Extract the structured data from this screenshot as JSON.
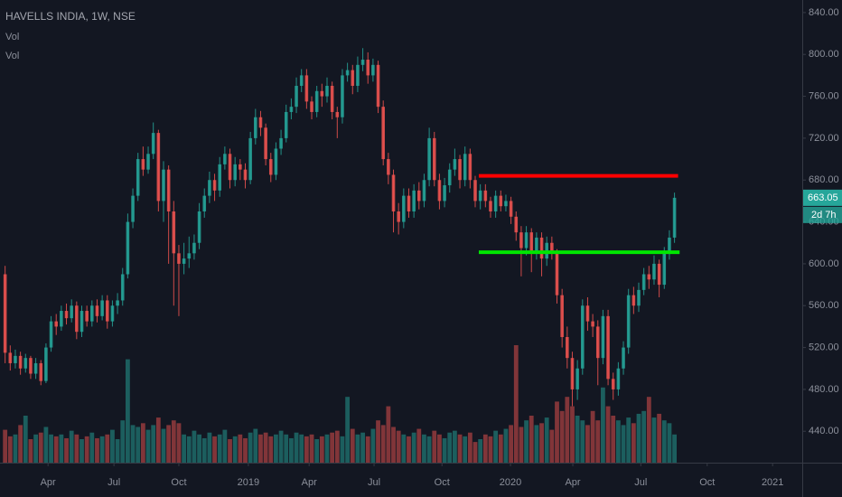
{
  "chart_data": {
    "type": "candlestick",
    "title": "HAVELLS INDIA, 1W, NSE",
    "indicators": [
      "Vol",
      "Vol"
    ],
    "up_color": "#26a69a",
    "down_color": "#ef5350",
    "ohlc": [
      [
        590,
        598,
        505,
        515
      ],
      [
        515,
        522,
        498,
        505
      ],
      [
        505,
        518,
        500,
        512
      ],
      [
        512,
        516,
        494,
        500
      ],
      [
        500,
        514,
        496,
        510
      ],
      [
        510,
        512,
        490,
        495
      ],
      [
        495,
        510,
        490,
        505
      ],
      [
        505,
        508,
        484,
        488
      ],
      [
        488,
        524,
        486,
        520
      ],
      [
        520,
        550,
        516,
        545
      ],
      [
        545,
        552,
        532,
        540
      ],
      [
        540,
        560,
        536,
        555
      ],
      [
        555,
        562,
        542,
        548
      ],
      [
        548,
        566,
        544,
        560
      ],
      [
        560,
        564,
        528,
        535
      ],
      [
        535,
        560,
        530,
        555
      ],
      [
        555,
        560,
        540,
        545
      ],
      [
        545,
        565,
        540,
        560
      ],
      [
        560,
        566,
        544,
        550
      ],
      [
        550,
        570,
        546,
        565
      ],
      [
        565,
        570,
        538,
        545
      ],
      [
        545,
        565,
        540,
        560
      ],
      [
        560,
        572,
        552,
        565
      ],
      [
        565,
        596,
        560,
        590
      ],
      [
        590,
        648,
        586,
        640
      ],
      [
        640,
        672,
        634,
        665
      ],
      [
        665,
        706,
        660,
        700
      ],
      [
        700,
        712,
        684,
        690
      ],
      [
        690,
        712,
        686,
        705
      ],
      [
        705,
        735,
        700,
        725
      ],
      [
        725,
        728,
        650,
        660
      ],
      [
        660,
        698,
        640,
        690
      ],
      [
        690,
        694,
        600,
        650
      ],
      [
        650,
        660,
        560,
        610
      ],
      [
        610,
        618,
        550,
        600
      ],
      [
        600,
        620,
        590,
        605
      ],
      [
        605,
        626,
        596,
        610
      ],
      [
        610,
        628,
        604,
        620
      ],
      [
        620,
        658,
        614,
        650
      ],
      [
        650,
        672,
        644,
        665
      ],
      [
        665,
        688,
        658,
        680
      ],
      [
        680,
        686,
        660,
        670
      ],
      [
        670,
        702,
        664,
        695
      ],
      [
        695,
        712,
        690,
        705
      ],
      [
        705,
        710,
        672,
        680
      ],
      [
        680,
        702,
        674,
        695
      ],
      [
        695,
        700,
        680,
        690
      ],
      [
        690,
        696,
        672,
        680
      ],
      [
        680,
        726,
        676,
        720
      ],
      [
        720,
        748,
        714,
        740
      ],
      [
        740,
        746,
        722,
        730
      ],
      [
        730,
        734,
        694,
        700
      ],
      [
        700,
        706,
        678,
        685
      ],
      [
        685,
        716,
        680,
        710
      ],
      [
        710,
        728,
        704,
        720
      ],
      [
        720,
        752,
        716,
        745
      ],
      [
        745,
        758,
        738,
        750
      ],
      [
        750,
        778,
        744,
        770
      ],
      [
        770,
        786,
        764,
        780
      ],
      [
        780,
        786,
        748,
        755
      ],
      [
        755,
        760,
        738,
        745
      ],
      [
        745,
        770,
        740,
        765
      ],
      [
        765,
        772,
        750,
        760
      ],
      [
        760,
        778,
        754,
        770
      ],
      [
        770,
        774,
        738,
        745
      ],
      [
        745,
        750,
        720,
        740
      ],
      [
        740,
        786,
        734,
        780
      ],
      [
        780,
        792,
        774,
        785
      ],
      [
        785,
        790,
        762,
        770
      ],
      [
        770,
        798,
        764,
        790
      ],
      [
        790,
        806,
        784,
        795
      ],
      [
        795,
        802,
        772,
        780
      ],
      [
        780,
        796,
        774,
        790
      ],
      [
        790,
        794,
        744,
        750
      ],
      [
        750,
        756,
        694,
        700
      ],
      [
        700,
        706,
        676,
        685
      ],
      [
        685,
        690,
        630,
        650
      ],
      [
        650,
        658,
        628,
        640
      ],
      [
        640,
        672,
        634,
        665
      ],
      [
        665,
        672,
        644,
        650
      ],
      [
        650,
        676,
        644,
        670
      ],
      [
        670,
        678,
        652,
        660
      ],
      [
        660,
        686,
        654,
        680
      ],
      [
        680,
        730,
        674,
        720
      ],
      [
        720,
        726,
        674,
        680
      ],
      [
        680,
        686,
        652,
        660
      ],
      [
        660,
        682,
        654,
        675
      ],
      [
        675,
        696,
        668,
        690
      ],
      [
        690,
        710,
        684,
        700
      ],
      [
        700,
        704,
        672,
        680
      ],
      [
        680,
        712,
        674,
        705
      ],
      [
        705,
        710,
        672,
        680
      ],
      [
        680,
        684,
        654,
        660
      ],
      [
        660,
        676,
        652,
        670
      ],
      [
        670,
        676,
        654,
        660
      ],
      [
        660,
        664,
        644,
        650
      ],
      [
        650,
        670,
        644,
        665
      ],
      [
        665,
        670,
        650,
        655
      ],
      [
        655,
        666,
        650,
        660
      ],
      [
        660,
        664,
        638,
        645
      ],
      [
        645,
        650,
        622,
        630
      ],
      [
        630,
        636,
        588,
        615
      ],
      [
        615,
        636,
        608,
        630
      ],
      [
        630,
        634,
        592,
        610
      ],
      [
        610,
        630,
        604,
        625
      ],
      [
        625,
        630,
        588,
        605
      ],
      [
        605,
        626,
        598,
        620
      ],
      [
        620,
        626,
        604,
        610
      ],
      [
        610,
        614,
        562,
        570
      ],
      [
        570,
        576,
        520,
        530
      ],
      [
        530,
        540,
        500,
        510
      ],
      [
        510,
        516,
        464,
        480
      ],
      [
        480,
        508,
        470,
        500
      ],
      [
        500,
        566,
        494,
        560
      ],
      [
        560,
        568,
        536,
        545
      ],
      [
        545,
        552,
        530,
        540
      ],
      [
        540,
        546,
        484,
        510
      ],
      [
        510,
        556,
        504,
        550
      ],
      [
        550,
        556,
        484,
        490
      ],
      [
        490,
        496,
        470,
        480
      ],
      [
        480,
        506,
        474,
        500
      ],
      [
        500,
        526,
        494,
        520
      ],
      [
        520,
        576,
        514,
        570
      ],
      [
        570,
        578,
        552,
        560
      ],
      [
        560,
        582,
        554,
        575
      ],
      [
        575,
        596,
        570,
        590
      ],
      [
        590,
        598,
        576,
        585
      ],
      [
        585,
        608,
        580,
        600
      ],
      [
        600,
        604,
        568,
        580
      ],
      [
        580,
        616,
        576,
        610
      ],
      [
        610,
        632,
        604,
        625
      ],
      [
        625,
        668,
        620,
        663.05
      ]
    ],
    "volume": [
      35,
      28,
      30,
      40,
      50,
      25,
      30,
      32,
      38,
      30,
      28,
      30,
      26,
      34,
      30,
      25,
      28,
      32,
      26,
      28,
      30,
      35,
      25,
      45,
      110,
      40,
      38,
      42,
      35,
      40,
      48,
      36,
      40,
      45,
      42,
      30,
      28,
      34,
      30,
      26,
      32,
      28,
      30,
      35,
      25,
      28,
      30,
      26,
      32,
      36,
      30,
      32,
      28,
      30,
      34,
      30,
      26,
      32,
      30,
      28,
      30,
      25,
      28,
      30,
      32,
      34,
      28,
      70,
      36,
      30,
      32,
      28,
      36,
      45,
      40,
      60,
      38,
      34,
      30,
      28,
      32,
      36,
      30,
      28,
      34,
      30,
      26,
      32,
      34,
      30,
      28,
      32,
      22,
      25,
      30,
      28,
      34,
      30,
      36,
      40,
      125,
      38,
      45,
      50,
      40,
      42,
      48,
      35,
      65,
      55,
      70,
      60,
      50,
      45,
      40,
      55,
      45,
      80,
      60,
      50,
      45,
      40,
      48,
      42,
      52,
      55,
      70,
      48,
      52,
      45,
      42,
      30
    ],
    "ylim": [
      410,
      852
    ],
    "yticks": [
      {
        "value": 840,
        "label": "840.00"
      },
      {
        "value": 800,
        "label": "800.00"
      },
      {
        "value": 760,
        "label": "760.00"
      },
      {
        "value": 720,
        "label": "720.00"
      },
      {
        "value": 680,
        "label": "680.00"
      },
      {
        "value": 640,
        "label": "640.00"
      },
      {
        "value": 600,
        "label": "600.00"
      },
      {
        "value": 560,
        "label": "560.00"
      },
      {
        "value": 520,
        "label": "520.00"
      },
      {
        "value": 480,
        "label": "480.00"
      },
      {
        "value": 440,
        "label": "440.00"
      }
    ],
    "xlim": [
      -1,
      156
    ],
    "xticks": [
      {
        "value": 8.4,
        "label": "Apr"
      },
      {
        "value": 21.3,
        "label": "Jul"
      },
      {
        "value": 34,
        "label": "Oct"
      },
      {
        "value": 47.6,
        "label": "2019"
      },
      {
        "value": 59.5,
        "label": "Apr"
      },
      {
        "value": 72.2,
        "label": "Jul"
      },
      {
        "value": 85.5,
        "label": "Oct"
      },
      {
        "value": 98.9,
        "label": "2020"
      },
      {
        "value": 111.1,
        "label": "Apr"
      },
      {
        "value": 124.4,
        "label": "Jul"
      },
      {
        "value": 137.4,
        "label": "Oct"
      },
      {
        "value": 150.2,
        "label": "2021"
      }
    ],
    "last_label": "663.05",
    "countdown": "2d 7h",
    "hlines": [
      {
        "value": 684,
        "x": [
          92.7,
          131.7
        ],
        "color": "#ff0000"
      },
      {
        "value": 611,
        "x": [
          92.7,
          132
        ],
        "color": "#00e600"
      }
    ]
  }
}
